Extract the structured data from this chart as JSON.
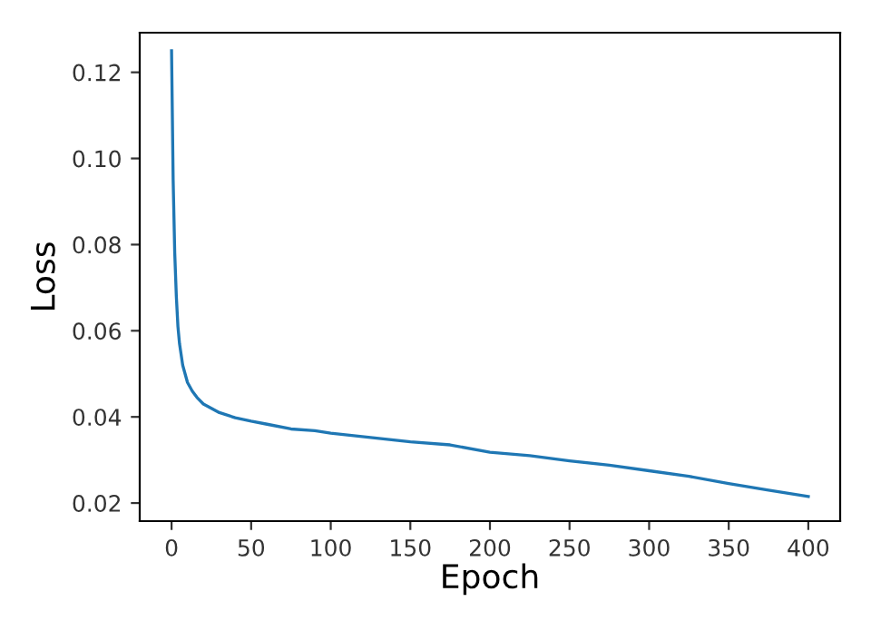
{
  "chart_data": {
    "type": "line",
    "xlabel": "Epoch",
    "ylabel": "Loss",
    "x": [
      0,
      1,
      2,
      3,
      4,
      5,
      7,
      10,
      13,
      16,
      20,
      25,
      30,
      40,
      50,
      60,
      75,
      90,
      100,
      125,
      150,
      175,
      200,
      225,
      250,
      275,
      300,
      325,
      350,
      375,
      400
    ],
    "series": [
      {
        "color": "#1f77b4",
        "values": [
          0.125,
          0.095,
          0.078,
          0.068,
          0.061,
          0.057,
          0.052,
          0.048,
          0.046,
          0.0445,
          0.043,
          0.042,
          0.041,
          0.0398,
          0.039,
          0.0383,
          0.0372,
          0.0368,
          0.0362,
          0.0352,
          0.0342,
          0.0335,
          0.0318,
          0.031,
          0.0298,
          0.0288,
          0.0275,
          0.0262,
          0.0245,
          0.023,
          0.0215
        ]
      }
    ],
    "xlim": [
      -20,
      420
    ],
    "ylim": [
      0.0158,
      0.1292
    ],
    "xticks": [
      0,
      50,
      100,
      150,
      200,
      250,
      300,
      350,
      400
    ],
    "yticks": [
      {
        "value": 0.02,
        "label": "0.02"
      },
      {
        "value": 0.04,
        "label": "0.04"
      },
      {
        "value": 0.06,
        "label": "0.06"
      },
      {
        "value": 0.08,
        "label": "0.08"
      },
      {
        "value": 0.1,
        "label": "0.10"
      },
      {
        "value": 0.12,
        "label": "0.12"
      }
    ],
    "grid": false,
    "marker": "none",
    "line_style": "solid"
  }
}
